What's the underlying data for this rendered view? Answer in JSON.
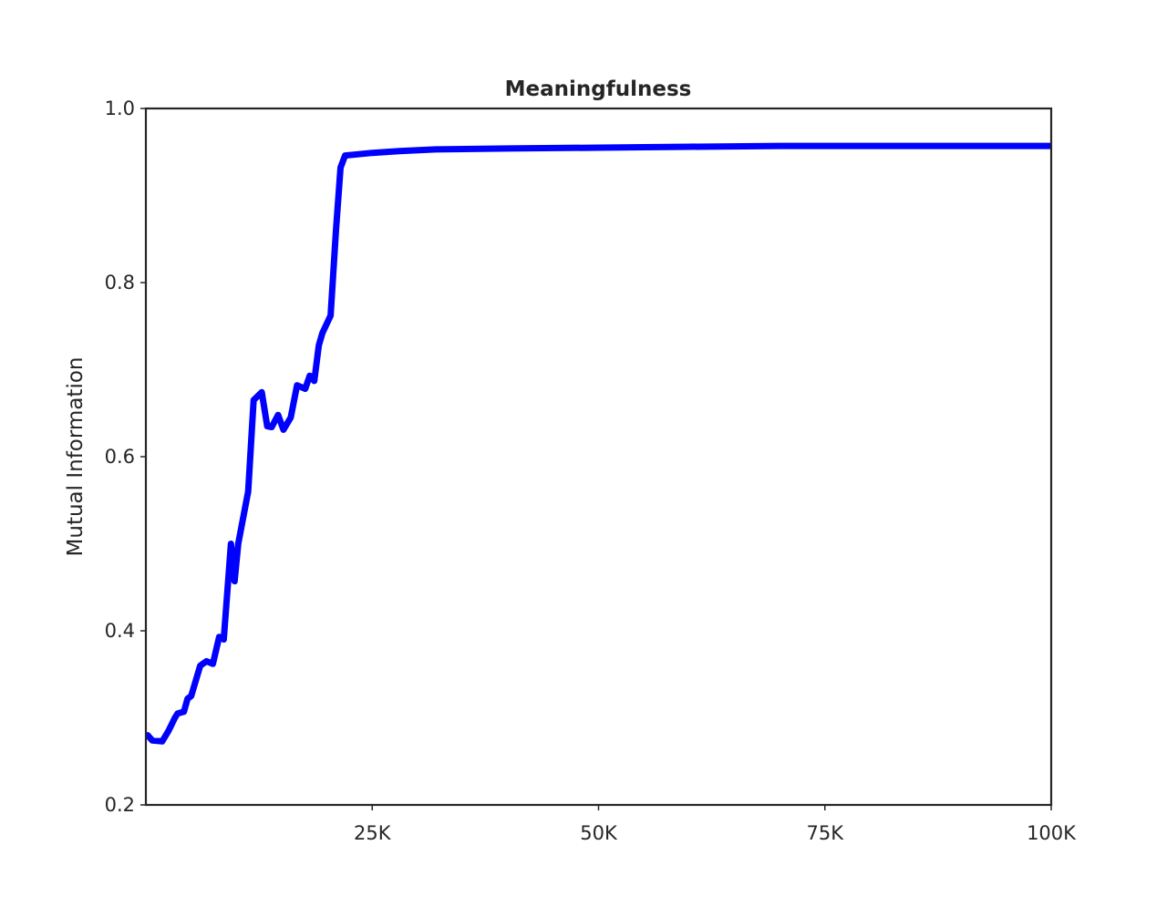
{
  "chart_data": {
    "type": "line",
    "title": "Meaningfulness",
    "xlabel": "",
    "ylabel": "Mutual Information",
    "xlim": [
      0,
      100000
    ],
    "ylim": [
      0.2,
      1.0
    ],
    "xticks": [
      25000,
      50000,
      75000,
      100000
    ],
    "xtick_labels": [
      "25K",
      "50K",
      "75K",
      "100K"
    ],
    "yticks": [
      0.2,
      0.4,
      0.6,
      0.8,
      1.0
    ],
    "ytick_labels": [
      "0.2",
      "0.4",
      "0.6",
      "0.8",
      "1.0"
    ],
    "grid": false,
    "series": [
      {
        "color": "#0000ff",
        "x": [
          200,
          700,
          1800,
          2500,
          3200,
          3500,
          4200,
          4600,
          5000,
          6000,
          6700,
          7400,
          8100,
          8600,
          9400,
          9800,
          10200,
          11300,
          11900,
          12800,
          13400,
          13900,
          14600,
          15200,
          16000,
          16700,
          17600,
          18100,
          18600,
          19100,
          19500,
          20400,
          21000,
          21500,
          22000,
          25000,
          28000,
          32000,
          40000,
          50000,
          60000,
          70000,
          80000,
          90000,
          100000
        ],
        "y": [
          0.28,
          0.274,
          0.273,
          0.285,
          0.3,
          0.305,
          0.307,
          0.322,
          0.325,
          0.36,
          0.365,
          0.362,
          0.393,
          0.39,
          0.5,
          0.457,
          0.5,
          0.56,
          0.665,
          0.674,
          0.635,
          0.634,
          0.648,
          0.631,
          0.645,
          0.682,
          0.678,
          0.693,
          0.687,
          0.728,
          0.742,
          0.762,
          0.86,
          0.932,
          0.946,
          0.949,
          0.951,
          0.953,
          0.954,
          0.955,
          0.956,
          0.957,
          0.957,
          0.957,
          0.957
        ]
      }
    ]
  }
}
